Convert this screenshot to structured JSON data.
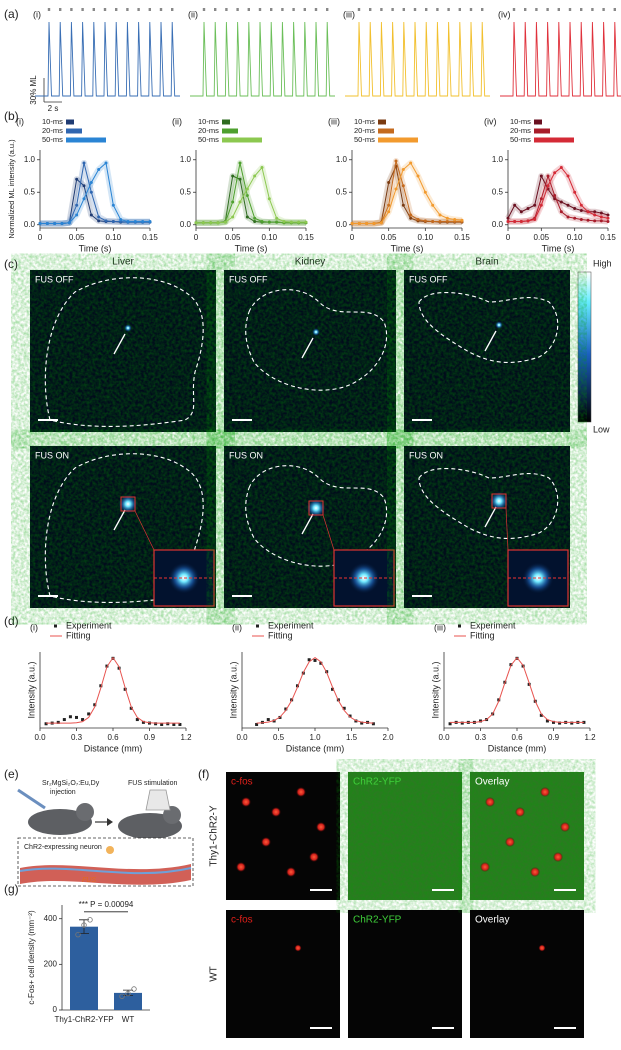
{
  "panel_labels": [
    "(a)",
    "(b)",
    "(c)",
    "(d)",
    "(e)",
    "(f)",
    "(g)"
  ],
  "a": {
    "subpanels": [
      "(i)",
      "(ii)",
      "(iii)",
      "(iv)"
    ],
    "scale_y": "30% ML",
    "scale_x": "2 s",
    "colors": [
      "#3a6fb5",
      "#6cbf5a",
      "#f2c02e",
      "#e0323c"
    ]
  },
  "c": {
    "columns": [
      "Liver",
      "Kidney",
      "Brain"
    ],
    "rows": [
      "FUS OFF",
      "FUS ON"
    ],
    "colorbar": [
      "High",
      "Low"
    ]
  },
  "e": {
    "agent": "Sr₂MgSi₂O₇:Eu,Dy",
    "agent_action": "injection",
    "stimulation": "FUS stimulation",
    "neuron": "ChR2-expressing neuron",
    "fus": "FUS"
  },
  "f": {
    "columns": [
      "c-fos",
      "ChR2-YFP",
      "Overlay"
    ],
    "rows": [
      "Thy1-ChR2-Y",
      "WT"
    ]
  },
  "chart_data": [
    {
      "type": "line",
      "subtitle": "(i)",
      "xlabel": "Time (s)",
      "ylabel": "Normalized ML intensity (a.u.)",
      "x": [
        0,
        0.01,
        0.02,
        0.03,
        0.04,
        0.05,
        0.06,
        0.07,
        0.08,
        0.09,
        0.1,
        0.11,
        0.12,
        0.13,
        0.14,
        0.15
      ],
      "xlim": [
        0,
        0.15
      ],
      "xticks": [
        0,
        0.05,
        {
          "value": 0.1,
          "label": "0.10"
        },
        0.15
      ],
      "ylim": [
        -0.05,
        1.15
      ],
      "yticks": [
        {
          "value": 0,
          "label": "0.0"
        },
        {
          "value": 0.5,
          "label": "0.5"
        },
        {
          "value": 1,
          "label": "1.0"
        }
      ],
      "series": [
        {
          "name": "10-ms",
          "color": "#1f3b73",
          "mode": "line+markers",
          "values": [
            0.02,
            0.02,
            0.02,
            0.02,
            0.03,
            0.7,
            0.6,
            0.15,
            0.06,
            0.05,
            0.05,
            0.04,
            0.04,
            0.04,
            0.04,
            0.04
          ]
        },
        {
          "name": "20-ms",
          "color": "#2f66b0",
          "mode": "line+markers",
          "values": [
            0.02,
            0.02,
            0.02,
            0.02,
            0.03,
            0.3,
            0.95,
            0.5,
            0.12,
            0.06,
            0.05,
            0.05,
            0.04,
            0.04,
            0.04,
            0.04
          ]
        },
        {
          "name": "50-ms",
          "color": "#2a84d4",
          "mode": "line+markers",
          "values": [
            0.02,
            0.02,
            0.02,
            0.02,
            0.03,
            0.15,
            0.4,
            0.65,
            0.85,
            0.95,
            0.3,
            0.08,
            0.05,
            0.05,
            0.05,
            0.05
          ]
        }
      ]
    },
    {
      "type": "line",
      "subtitle": "(ii)",
      "xlabel": "Time (s)",
      "x": [
        0,
        0.01,
        0.02,
        0.03,
        0.04,
        0.05,
        0.06,
        0.07,
        0.08,
        0.09,
        0.1,
        0.11,
        0.12,
        0.13,
        0.14,
        0.15
      ],
      "xlim": [
        0,
        0.15
      ],
      "xticks": [
        0,
        0.05,
        {
          "value": 0.1,
          "label": "0.10"
        },
        0.15
      ],
      "ylim": [
        -0.05,
        1.15
      ],
      "yticks": [
        {
          "value": 0,
          "label": "0.0"
        },
        {
          "value": 0.5,
          "label": "0.5"
        },
        {
          "value": 1,
          "label": "1.0"
        }
      ],
      "series": [
        {
          "name": "10-ms",
          "color": "#2e6b1f",
          "mode": "line+markers",
          "values": [
            0.03,
            0.03,
            0.03,
            0.03,
            0.05,
            0.75,
            0.7,
            0.12,
            0.05,
            0.04,
            0.04,
            0.04,
            0.03,
            0.03,
            0.03,
            0.03
          ]
        },
        {
          "name": "20-ms",
          "color": "#4ea02e",
          "mode": "line+markers",
          "values": [
            0.03,
            0.03,
            0.03,
            0.03,
            0.04,
            0.35,
            0.95,
            0.45,
            0.1,
            0.05,
            0.04,
            0.04,
            0.03,
            0.03,
            0.03,
            0.03
          ]
        },
        {
          "name": "50-ms",
          "color": "#8cc850",
          "mode": "line+markers",
          "values": [
            0.03,
            0.03,
            0.03,
            0.03,
            0.04,
            0.12,
            0.35,
            0.55,
            0.75,
            0.88,
            0.4,
            0.1,
            0.05,
            0.04,
            0.04,
            0.04
          ]
        }
      ]
    },
    {
      "type": "line",
      "subtitle": "(iii)",
      "xlabel": "Time (s)",
      "x": [
        0,
        0.01,
        0.02,
        0.03,
        0.04,
        0.05,
        0.06,
        0.07,
        0.08,
        0.09,
        0.1,
        0.11,
        0.12,
        0.13,
        0.14,
        0.15
      ],
      "xlim": [
        0,
        0.15
      ],
      "xticks": [
        0,
        0.05,
        {
          "value": 0.1,
          "label": "0.10"
        },
        0.15
      ],
      "ylim": [
        -0.05,
        1.15
      ],
      "yticks": [
        {
          "value": 0,
          "label": "0.0"
        },
        {
          "value": 0.5,
          "label": "0.5"
        },
        {
          "value": 1,
          "label": "1.0"
        }
      ],
      "series": [
        {
          "name": "10-ms",
          "color": "#7a3a10",
          "mode": "line+markers",
          "values": [
            0.02,
            0.02,
            0.02,
            0.02,
            0.04,
            0.65,
            0.9,
            0.3,
            0.1,
            0.06,
            0.05,
            0.05,
            0.04,
            0.04,
            0.04,
            0.04
          ]
        },
        {
          "name": "20-ms",
          "color": "#c46a1e",
          "mode": "line+markers",
          "values": [
            0.02,
            0.02,
            0.02,
            0.02,
            0.03,
            0.3,
            0.98,
            0.6,
            0.15,
            0.08,
            0.06,
            0.05,
            0.05,
            0.05,
            0.05,
            0.05
          ]
        },
        {
          "name": "50-ms",
          "color": "#f29a2e",
          "mode": "line+markers",
          "values": [
            0.02,
            0.02,
            0.02,
            0.02,
            0.03,
            0.2,
            0.55,
            0.85,
            0.95,
            0.75,
            0.5,
            0.3,
            0.15,
            0.1,
            0.08,
            0.07
          ]
        }
      ]
    },
    {
      "type": "line",
      "subtitle": "(iv)",
      "xlabel": "Time (s)",
      "x": [
        0,
        0.01,
        0.02,
        0.03,
        0.04,
        0.05,
        0.06,
        0.07,
        0.08,
        0.09,
        0.1,
        0.11,
        0.12,
        0.13,
        0.14,
        0.15
      ],
      "xlim": [
        0,
        0.15
      ],
      "xticks": [
        0,
        0.05,
        {
          "value": 0.1,
          "label": "0.10"
        },
        0.15
      ],
      "ylim": [
        -0.05,
        1.15
      ],
      "yticks": [
        {
          "value": 0,
          "label": "0.0"
        },
        {
          "value": 0.5,
          "label": "0.5"
        },
        {
          "value": 1,
          "label": "1.0"
        }
      ],
      "series": [
        {
          "name": "10-ms",
          "color": "#6a1020",
          "mode": "line+markers",
          "values": [
            0.1,
            0.3,
            0.2,
            0.25,
            0.3,
            0.75,
            0.55,
            0.4,
            0.35,
            0.3,
            0.25,
            0.22,
            0.2,
            0.2,
            0.18,
            0.15
          ]
        },
        {
          "name": "20-ms",
          "color": "#a81c2a",
          "mode": "line+markers",
          "values": [
            0.05,
            0.05,
            0.05,
            0.06,
            0.1,
            0.4,
            0.75,
            0.45,
            0.2,
            0.12,
            0.1,
            0.08,
            0.07,
            0.06,
            0.06,
            0.05
          ]
        },
        {
          "name": "50-ms",
          "color": "#d42a36",
          "mode": "line+markers",
          "values": [
            0.05,
            0.05,
            0.05,
            0.06,
            0.08,
            0.3,
            0.6,
            0.8,
            0.88,
            0.75,
            0.5,
            0.3,
            0.2,
            0.15,
            0.12,
            0.1
          ]
        }
      ]
    },
    {
      "type": "line",
      "subtitle": "(i)",
      "xlabel": "Distance (mm)",
      "ylabel": "Intensity (a.u.)",
      "x": [
        0.05,
        0.1,
        0.15,
        0.2,
        0.25,
        0.3,
        0.35,
        0.4,
        0.45,
        0.5,
        0.55,
        0.6,
        0.65,
        0.7,
        0.75,
        0.8,
        0.85,
        0.9,
        0.95,
        1,
        1.05,
        1.1,
        1.15
      ],
      "xlim": [
        0,
        1.2
      ],
      "xticks": [
        {
          "value": 0,
          "label": "0.0"
        },
        0.3,
        0.6,
        0.9,
        {
          "value": 1.2,
          "label": "1.2"
        }
      ],
      "ylim": [
        0,
        1.08
      ],
      "series": [
        {
          "name": "Experiment",
          "color": "#222222",
          "mode": "markers",
          "values": [
            0.06,
            0.07,
            0.08,
            0.12,
            0.16,
            0.15,
            0.12,
            0.2,
            0.33,
            0.6,
            0.88,
            0.99,
            0.85,
            0.55,
            0.28,
            0.12,
            0.08,
            0.07,
            0.06,
            0.05,
            0.06,
            0.05,
            0.05
          ]
        },
        {
          "name": "Fitting",
          "color": "#e8534f",
          "mode": "line",
          "values": [
            0.07,
            0.07,
            0.07,
            0.07,
            0.07,
            0.074,
            0.09,
            0.15,
            0.3,
            0.57,
            0.87,
            1,
            0.87,
            0.57,
            0.3,
            0.15,
            0.09,
            0.074,
            0.07,
            0.07,
            0.07,
            0.07,
            0.07
          ]
        }
      ]
    },
    {
      "type": "line",
      "subtitle": "(ii)",
      "xlabel": "Distance (mm)",
      "ylabel": "Intensity (a.u.)",
      "x": [
        0.2,
        0.28,
        0.36,
        0.44,
        0.52,
        0.6,
        0.68,
        0.76,
        0.84,
        0.92,
        1,
        1.08,
        1.16,
        1.24,
        1.32,
        1.4,
        1.48,
        1.56,
        1.64,
        1.72,
        1.8
      ],
      "xlim": [
        0,
        2
      ],
      "xticks": [
        {
          "value": 0,
          "label": "0.0"
        },
        0.5,
        {
          "value": 1,
          "label": "1.0"
        },
        1.5,
        {
          "value": 2,
          "label": "2.0"
        }
      ],
      "ylim": [
        0,
        1.08
      ],
      "series": [
        {
          "name": "Experiment",
          "color": "#222222",
          "mode": "markers",
          "values": [
            0.05,
            0.08,
            0.12,
            0.1,
            0.15,
            0.27,
            0.4,
            0.6,
            0.78,
            0.97,
            0.96,
            0.92,
            0.8,
            0.55,
            0.4,
            0.28,
            0.17,
            0.1,
            0.07,
            0.08,
            0.06
          ]
        },
        {
          "name": "Fitting",
          "color": "#e8534f",
          "mode": "line",
          "values": [
            0.07,
            0.074,
            0.084,
            0.106,
            0.156,
            0.25,
            0.39,
            0.58,
            0.79,
            0.94,
            1,
            0.94,
            0.79,
            0.58,
            0.39,
            0.25,
            0.156,
            0.106,
            0.084,
            0.074,
            0.07
          ]
        }
      ]
    },
    {
      "type": "line",
      "subtitle": "(iii)",
      "xlabel": "Distance (mm)",
      "ylabel": "Intensity (a.u.)",
      "x": [
        0.05,
        0.1,
        0.15,
        0.2,
        0.25,
        0.3,
        0.35,
        0.4,
        0.45,
        0.5,
        0.55,
        0.6,
        0.65,
        0.7,
        0.75,
        0.8,
        0.85,
        0.9,
        0.95,
        1,
        1.05,
        1.1,
        1.15
      ],
      "xlim": [
        0,
        1.2
      ],
      "xticks": [
        {
          "value": 0,
          "label": "0.0"
        },
        0.3,
        0.6,
        0.9,
        {
          "value": 1.2,
          "label": "1.2"
        }
      ],
      "ylim": [
        0,
        1.08
      ],
      "series": [
        {
          "name": "Experiment",
          "color": "#222222",
          "mode": "markers",
          "values": [
            0.06,
            0.08,
            0.07,
            0.08,
            0.08,
            0.1,
            0.12,
            0.2,
            0.4,
            0.65,
            0.9,
            0.99,
            0.88,
            0.62,
            0.38,
            0.18,
            0.1,
            0.08,
            0.07,
            0.08,
            0.07,
            0.08,
            0.08
          ]
        },
        {
          "name": "Fitting",
          "color": "#e8534f",
          "mode": "line",
          "values": [
            0.08,
            0.08,
            0.08,
            0.08,
            0.08,
            0.09,
            0.12,
            0.2,
            0.38,
            0.64,
            0.89,
            1,
            0.89,
            0.64,
            0.38,
            0.2,
            0.12,
            0.09,
            0.08,
            0.08,
            0.08,
            0.08,
            0.08
          ]
        }
      ]
    },
    {
      "type": "bar",
      "ylabel": "c-Fos+ cell density (mm⁻²)",
      "annotation": "*** P = 0.00094",
      "categories": [
        "Thy1-ChR2-YFP",
        "WT"
      ],
      "values": [
        365,
        75
      ],
      "errors": [
        30,
        12
      ],
      "points": [
        [
          330,
          372,
          395
        ],
        [
          60,
          72,
          92
        ]
      ],
      "color": "#2d5f9e",
      "ylim": [
        0,
        460
      ],
      "yticks": [
        0,
        200,
        400
      ]
    }
  ]
}
